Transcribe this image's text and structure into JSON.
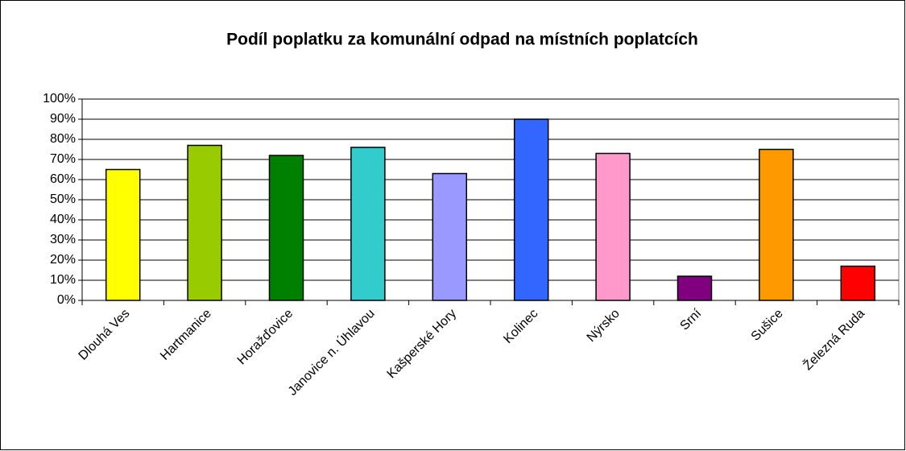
{
  "chart_data": {
    "type": "bar",
    "title": "Podíl poplatku za komunální odpad na místních poplatcích",
    "categories": [
      "Dlouhá Ves",
      "Hartmanice",
      "Horažďovice",
      "Janovice n. Úhlavou",
      "Kašperské Hory",
      "Kolinec",
      "Nýrsko",
      "Srní",
      "Sušice",
      "Železná Ruda"
    ],
    "values": [
      65,
      77,
      72,
      76,
      63,
      90,
      73,
      12,
      75,
      17
    ],
    "colors": [
      "#ffff00",
      "#99cc00",
      "#008000",
      "#33cccc",
      "#9999ff",
      "#3366ff",
      "#ff99cc",
      "#800080",
      "#ff9900",
      "#ff0000"
    ],
    "ylim": [
      0,
      100
    ],
    "yticks": [
      {
        "value": 0,
        "label": "0%"
      },
      {
        "value": 10,
        "label": "10%"
      },
      {
        "value": 20,
        "label": "20%"
      },
      {
        "value": 30,
        "label": "30%"
      },
      {
        "value": 40,
        "label": "40%"
      },
      {
        "value": 50,
        "label": "50%"
      },
      {
        "value": 60,
        "label": "60%"
      },
      {
        "value": 70,
        "label": "70%"
      },
      {
        "value": 80,
        "label": "80%"
      },
      {
        "value": 90,
        "label": "90%"
      },
      {
        "value": 100,
        "label": "100%"
      }
    ],
    "grid": true
  }
}
